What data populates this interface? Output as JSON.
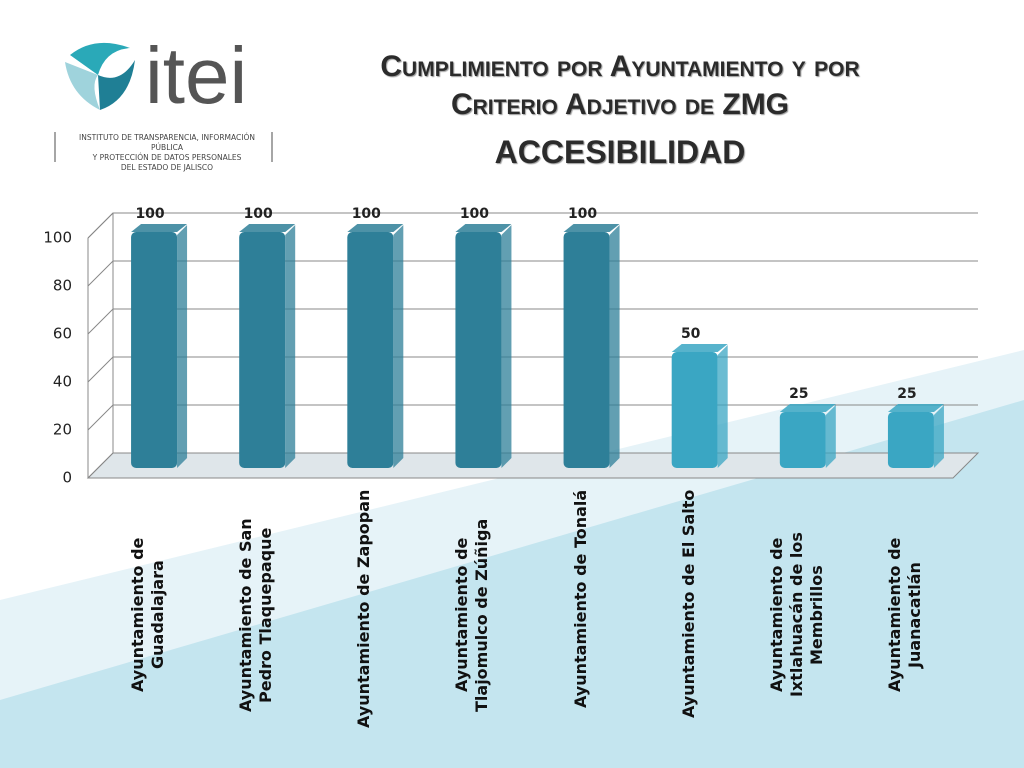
{
  "logo": {
    "name": "itei",
    "subtitle": [
      "INSTITUTO DE TRANSPARENCIA, INFORMACIÓN PÚBLICA",
      "Y PROTECCIÓN DE DATOS PERSONALES",
      "DEL ESTADO DE JALISCO"
    ]
  },
  "chart_data": {
    "type": "bar",
    "title": "Cumplimiento por Ayuntamiento y por Criterio Adjetivo de ZMG",
    "subtitle": "ACCESIBILIDAD",
    "categories": [
      "Ayuntamiento de Guadalajara",
      "Ayuntamiento de San Pedro Tlaquepaque",
      "Ayuntamiento de Zapopan",
      "Ayuntamiento de Tlajomulco de Zúñiga",
      "Ayuntamiento de Tonalá",
      "Ayuntamiento de El Salto",
      "Ayuntamiento de Ixtlahuacán de los Membrillos",
      "Ayuntamiento de Juanacatlán"
    ],
    "values": [
      100,
      100,
      100,
      100,
      100,
      50,
      25,
      25
    ],
    "colors": [
      "#2e7f98",
      "#2e7f98",
      "#2e7f98",
      "#2e7f98",
      "#2e7f98",
      "#3aa6c3",
      "#3aa6c3",
      "#3aa6c3"
    ],
    "ylim": [
      0,
      100
    ],
    "yticks": [
      0,
      20,
      40,
      60,
      80,
      100
    ],
    "grid": true
  }
}
